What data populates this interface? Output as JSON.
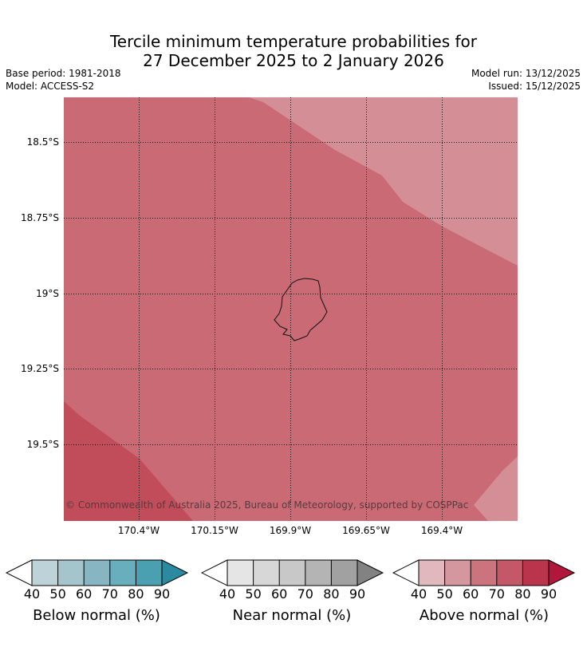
{
  "header": {
    "title_line1": "Tercile minimum temperature probabilities for",
    "title_line2": "27 December 2025 to 2 January 2026",
    "base_period": "Base period: 1981-2018",
    "model": "Model: ACCESS-S2",
    "model_run": "Model run: 13/12/2025",
    "issued": "Issued: 15/12/2025"
  },
  "map": {
    "region": "Niue",
    "latitude_labels": [
      "18.5°S",
      "18.75°S",
      "19°S",
      "19.25°S",
      "19.5°S"
    ],
    "longitude_labels": [
      "170.4°W",
      "170.15°W",
      "169.9°W",
      "169.65°W",
      "169.4°W"
    ],
    "copyright": "© Commonwealth of Australia 2025, Bureau of Meteorology, supported by COSPPac",
    "fill_colors": {
      "above_50_60": "#d48f96",
      "above_60_70": "#c96a75",
      "above_70_80": "#c14c5a"
    },
    "gridlines": "dotted"
  },
  "colorbars": [
    {
      "label": "Below normal (%)",
      "ticks": [
        "40",
        "50",
        "60",
        "70",
        "80",
        "90"
      ],
      "colors": [
        "#ffffff",
        "#bed3d9",
        "#a4c5cb",
        "#87b5c1",
        "#69aebd",
        "#4aa0b1",
        "#2b8aa0"
      ]
    },
    {
      "label": "Near normal (%)",
      "ticks": [
        "40",
        "50",
        "60",
        "70",
        "80",
        "90"
      ],
      "colors": [
        "#ffffff",
        "#e5e5e5",
        "#d7d7d7",
        "#c8c8c8",
        "#b4b4b4",
        "#a1a1a1",
        "#828282"
      ]
    },
    {
      "label": "Above normal (%)",
      "ticks": [
        "40",
        "50",
        "60",
        "70",
        "80",
        "90"
      ],
      "colors": [
        "#ffffff",
        "#e0b8bd",
        "#d4979f",
        "#cc747e",
        "#c45768",
        "#ba344b",
        "#b0173a"
      ]
    }
  ]
}
